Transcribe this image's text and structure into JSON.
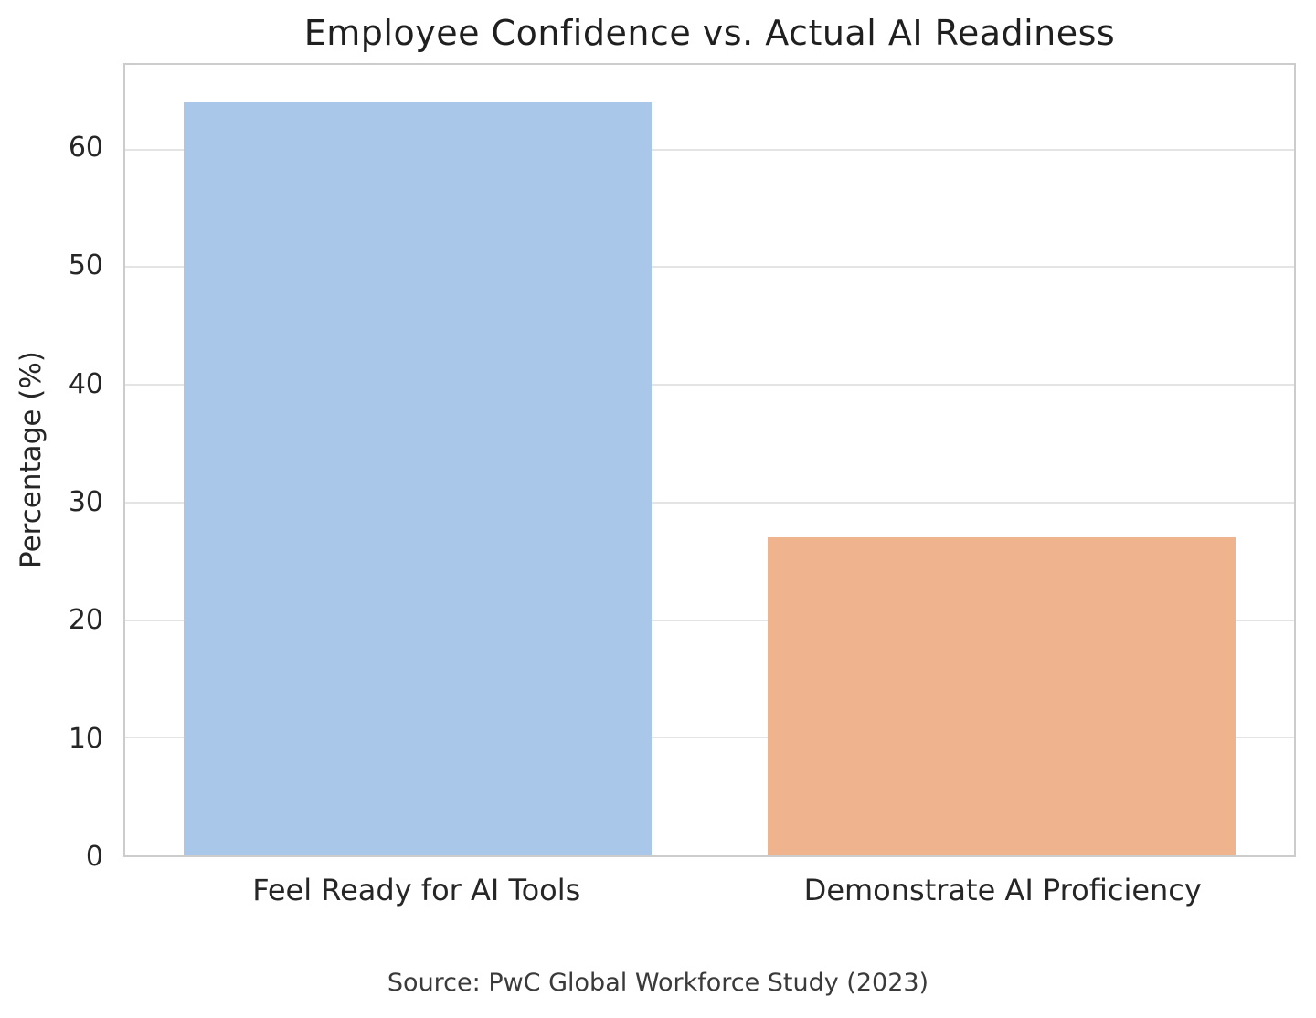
{
  "chart_data": {
    "type": "bar",
    "title": "Employee Confidence vs. Actual AI Readiness",
    "categories": [
      "Feel Ready for AI Tools",
      "Demonstrate AI Proficiency"
    ],
    "values": [
      64,
      27
    ],
    "bar_colors": [
      "#a9c8e9",
      "#efb48e"
    ],
    "xlabel": "",
    "ylabel": "Percentage (%)",
    "ylim": [
      0,
      67.2
    ],
    "yticks": [
      0,
      10,
      20,
      30,
      40,
      50,
      60
    ],
    "grid": "horizontal-only",
    "legend": "none",
    "bar_width_fraction": 0.8,
    "grid_color": "#e4e4e4",
    "spine_color": "#cccccc",
    "source": "Source: PwC Global Workforce Study (2023)"
  }
}
